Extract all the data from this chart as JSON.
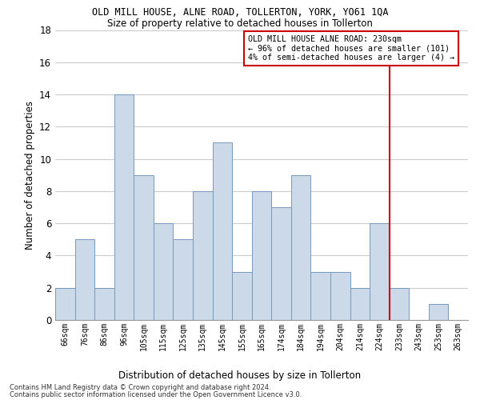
{
  "title": "OLD MILL HOUSE, ALNE ROAD, TOLLERTON, YORK, YO61 1QA",
  "subtitle": "Size of property relative to detached houses in Tollerton",
  "xlabel": "Distribution of detached houses by size in Tollerton",
  "ylabel": "Number of detached properties",
  "footer_line1": "Contains HM Land Registry data © Crown copyright and database right 2024.",
  "footer_line2": "Contains public sector information licensed under the Open Government Licence v3.0.",
  "bar_labels": [
    "66sqm",
    "76sqm",
    "86sqm",
    "96sqm",
    "105sqm",
    "115sqm",
    "125sqm",
    "135sqm",
    "145sqm",
    "155sqm",
    "165sqm",
    "174sqm",
    "184sqm",
    "194sqm",
    "204sqm",
    "214sqm",
    "224sqm",
    "233sqm",
    "243sqm",
    "253sqm",
    "263sqm"
  ],
  "bar_values": [
    2,
    5,
    2,
    14,
    9,
    6,
    5,
    8,
    11,
    3,
    8,
    7,
    9,
    3,
    3,
    2,
    6,
    2,
    0,
    1,
    0
  ],
  "bar_color": "#ccd9e8",
  "bar_edge_color": "#7799bb",
  "vline_color": "#cc0000",
  "annotation_title": "OLD MILL HOUSE ALNE ROAD: 230sqm",
  "annotation_line1": "← 96% of detached houses are smaller (101)",
  "annotation_line2": "4% of semi-detached houses are larger (4) →",
  "annotation_box_color": "#ffffff",
  "annotation_box_edge": "#cc0000",
  "ylim": [
    0,
    18
  ],
  "yticks": [
    0,
    2,
    4,
    6,
    8,
    10,
    12,
    14,
    16,
    18
  ],
  "grid_color": "#cccccc",
  "background_color": "#ffffff",
  "fig_width": 6.0,
  "fig_height": 5.0
}
